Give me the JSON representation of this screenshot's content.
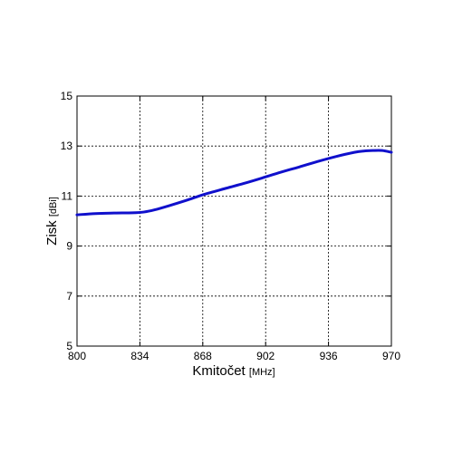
{
  "chart_data": {
    "type": "line",
    "title": "",
    "xlabel": "Kmitočet",
    "xlabel_unit": "[MHz]",
    "ylabel": "Zisk",
    "ylabel_unit": "[dBi]",
    "xlim": [
      800,
      970
    ],
    "ylim": [
      5,
      15
    ],
    "xticks": [
      800,
      834,
      868,
      902,
      936,
      970
    ],
    "yticks": [
      5,
      7,
      9,
      11,
      13,
      15
    ],
    "grid": true,
    "series": [
      {
        "color": "#1010cc",
        "x": [
          800,
          810,
          820,
          830,
          836,
          842,
          850,
          860,
          868,
          880,
          890,
          900,
          910,
          920,
          930,
          940,
          950,
          955,
          960,
          965,
          970
        ],
        "y": [
          10.25,
          10.3,
          10.32,
          10.33,
          10.36,
          10.45,
          10.62,
          10.85,
          11.05,
          11.3,
          11.5,
          11.72,
          11.95,
          12.16,
          12.38,
          12.58,
          12.75,
          12.8,
          12.82,
          12.82,
          12.75
        ]
      }
    ]
  }
}
